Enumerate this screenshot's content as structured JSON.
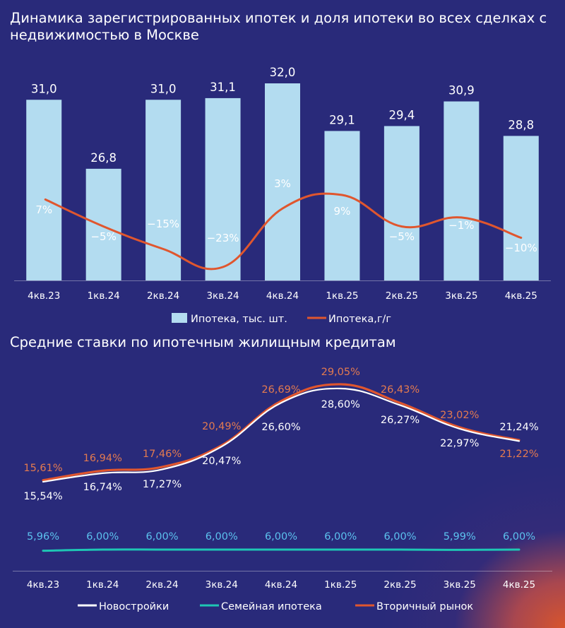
{
  "colors": {
    "background": "#292a7a",
    "bar": "#b3dcf0",
    "yoy_line": "#e0562e",
    "new_line": "#ffffff",
    "family_line": "#1ec6b4",
    "secondary_line": "#e0562e",
    "secondary_label": "#e37a4f",
    "family_label": "#5cc2ee"
  },
  "chart_data": [
    {
      "type": "bar",
      "title": "Динамика зарегистрированных ипотек и доля ипотеки во всех сделках с недвижимостью в Москве",
      "categories": [
        "4кв.23",
        "1кв.24",
        "2кв.24",
        "3кв.24",
        "4кв.24",
        "1кв.25",
        "2кв.25",
        "3кв.25",
        "4кв.25"
      ],
      "series": [
        {
          "name": "Ипотека, тыс. шт.",
          "kind": "bar",
          "values": [
            31.0,
            26.8,
            31.0,
            31.1,
            32.0,
            29.1,
            29.4,
            30.9,
            28.8
          ],
          "labels": [
            "31,0",
            "26,8",
            "31,0",
            "31,1",
            "32,0",
            "29,1",
            "29,4",
            "30,9",
            "28,8"
          ]
        },
        {
          "name": "Ипотека,г/г",
          "kind": "line",
          "values": [
            7,
            -5,
            -15,
            -23,
            3,
            9,
            -5,
            -1,
            -10
          ],
          "labels": [
            "7%",
            "-5%",
            "-15%",
            "-23%",
            "3%",
            "9%",
            "-5%",
            "-1%",
            "-10%"
          ]
        }
      ],
      "ylim": [
        20,
        33
      ],
      "ylim_right": [
        -30,
        20
      ],
      "legend": "bottom-center"
    },
    {
      "type": "line",
      "title": "Средние ставки по ипотечным жилищным кредитам",
      "categories": [
        "4кв.23",
        "1кв.24",
        "2кв.24",
        "3кв.24",
        "4кв.24",
        "1кв.25",
        "2кв.25",
        "3кв.25",
        "4кв.25"
      ],
      "series": [
        {
          "name": "Новостройки",
          "values": [
            15.54,
            16.74,
            17.27,
            20.47,
            26.6,
            28.6,
            26.27,
            22.97,
            21.24
          ],
          "labels": [
            "15,54%",
            "16,74%",
            "17,27%",
            "20,47%",
            "26,60%",
            "28,60%",
            "26,27%",
            "22,97%",
            "21,24%"
          ]
        },
        {
          "name": "Семейная ипотека",
          "values": [
            5.96,
            6.0,
            6.0,
            6.0,
            6.0,
            6.0,
            6.0,
            5.99,
            6.0
          ],
          "labels": [
            "5,96%",
            "6,00%",
            "6,00%",
            "6,00%",
            "6,00%",
            "6,00%",
            "6,00%",
            "5,99%",
            "6,00%"
          ]
        },
        {
          "name": "Вторичный рынок",
          "values": [
            15.61,
            16.94,
            17.46,
            20.49,
            26.69,
            29.05,
            26.43,
            23.02,
            21.22
          ],
          "labels": [
            "15,61%",
            "16,94%",
            "17,46%",
            "20,49%",
            "26,69%",
            "29,05%",
            "26,43%",
            "23,02%",
            "21,22%"
          ]
        }
      ],
      "legend": "bottom-center"
    }
  ]
}
